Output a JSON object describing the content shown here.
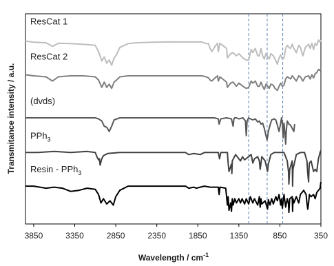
{
  "chart_data": {
    "type": "line",
    "title": "",
    "xlabel": "Wavelength / cm",
    "xlabel_sup": "-1",
    "ylabel": "Transmitance intensity / a.u.",
    "xlim": [
      3950,
      350
    ],
    "x_reversed": true,
    "ylim": [
      0,
      1
    ],
    "y_ticks_shown": false,
    "x_ticks": [
      3850,
      3350,
      2850,
      2350,
      1850,
      1350,
      850,
      350
    ],
    "x_tick_labels": [
      "3850",
      "3350",
      "2850",
      "2350",
      "1850",
      "1350",
      "850",
      "350"
    ],
    "grid": false,
    "legend": "inline-labels",
    "reference_lines": {
      "style": "dashed",
      "color": "#5b7fb0",
      "x": [
        1230,
        1005,
        815
      ]
    },
    "series": [
      {
        "name": "ResCat 1",
        "label_main": "ResCat 1",
        "label_sub": "",
        "color": "#bdbdbd",
        "x": [
          3950,
          3850,
          3700,
          3620,
          3550,
          3400,
          3250,
          3100,
          3060,
          3020,
          2990,
          2960,
          2930,
          2900,
          2870,
          2840,
          2800,
          2700,
          2600,
          2400,
          2200,
          2000,
          1860,
          1800,
          1750,
          1720,
          1700,
          1680,
          1640,
          1610,
          1600,
          1580,
          1500,
          1490,
          1470,
          1450,
          1420,
          1380,
          1350,
          1300,
          1260,
          1230,
          1200,
          1180,
          1150,
          1120,
          1100,
          1080,
          1060,
          1040,
          1020,
          1005,
          980,
          960,
          930,
          910,
          880,
          860,
          840,
          820,
          800,
          780,
          760,
          740,
          720,
          700,
          680,
          650,
          620,
          600,
          570,
          540,
          500,
          480,
          460,
          440,
          420,
          400,
          380,
          360,
          350
        ],
        "y": [
          0.87,
          0.865,
          0.862,
          0.845,
          0.86,
          0.858,
          0.855,
          0.85,
          0.82,
          0.775,
          0.795,
          0.765,
          0.78,
          0.755,
          0.79,
          0.805,
          0.84,
          0.858,
          0.862,
          0.865,
          0.866,
          0.866,
          0.866,
          0.866,
          0.858,
          0.858,
          0.835,
          0.82,
          0.845,
          0.86,
          0.82,
          0.86,
          0.835,
          0.79,
          0.8,
          0.81,
          0.815,
          0.8,
          0.81,
          0.79,
          0.78,
          0.78,
          0.83,
          0.815,
          0.835,
          0.8,
          0.8,
          0.835,
          0.8,
          0.785,
          0.81,
          0.8,
          0.785,
          0.81,
          0.8,
          0.785,
          0.76,
          0.79,
          0.805,
          0.785,
          0.79,
          0.835,
          0.85,
          0.84,
          0.835,
          0.855,
          0.835,
          0.815,
          0.85,
          0.84,
          0.8,
          0.84,
          0.855,
          0.835,
          0.86,
          0.83,
          0.86,
          0.85,
          0.875,
          0.865,
          0.875
        ]
      },
      {
        "name": "ResCat 2",
        "label_main": "ResCat 2",
        "label_sub": "",
        "color": "#7f7f7f",
        "x": [
          3950,
          3850,
          3700,
          3620,
          3550,
          3400,
          3250,
          3100,
          3060,
          3020,
          2990,
          2960,
          2930,
          2900,
          2870,
          2840,
          2800,
          2700,
          2600,
          2400,
          2200,
          2000,
          1860,
          1800,
          1750,
          1720,
          1700,
          1680,
          1640,
          1610,
          1600,
          1580,
          1500,
          1490,
          1470,
          1450,
          1420,
          1380,
          1350,
          1300,
          1260,
          1230,
          1200,
          1180,
          1150,
          1120,
          1100,
          1080,
          1060,
          1040,
          1020,
          1005,
          980,
          960,
          930,
          910,
          880,
          860,
          840,
          820,
          800,
          780,
          760,
          740,
          720,
          700,
          680,
          650,
          620,
          600,
          570,
          540,
          500,
          480,
          460,
          440,
          420,
          400,
          380,
          360,
          350
        ],
        "y": [
          0.71,
          0.705,
          0.7,
          0.68,
          0.7,
          0.705,
          0.705,
          0.7,
          0.685,
          0.65,
          0.675,
          0.65,
          0.665,
          0.645,
          0.675,
          0.685,
          0.7,
          0.705,
          0.705,
          0.705,
          0.705,
          0.705,
          0.705,
          0.705,
          0.7,
          0.695,
          0.685,
          0.68,
          0.695,
          0.705,
          0.68,
          0.7,
          0.675,
          0.65,
          0.66,
          0.67,
          0.675,
          0.655,
          0.67,
          0.655,
          0.645,
          0.65,
          0.68,
          0.67,
          0.68,
          0.655,
          0.655,
          0.675,
          0.655,
          0.64,
          0.665,
          0.66,
          0.645,
          0.665,
          0.66,
          0.645,
          0.635,
          0.655,
          0.67,
          0.655,
          0.66,
          0.69,
          0.7,
          0.695,
          0.69,
          0.705,
          0.695,
          0.68,
          0.705,
          0.7,
          0.68,
          0.7,
          0.705,
          0.69,
          0.71,
          0.695,
          0.715,
          0.72,
          0.735,
          0.73,
          0.74
        ]
      },
      {
        "name": "(dvds)",
        "label_main": "(dvds)",
        "label_sub": "",
        "color": "#595959",
        "x": [
          3950,
          3800,
          3600,
          3400,
          3200,
          3100,
          3060,
          3020,
          2990,
          2960,
          2930,
          2900,
          2870,
          2800,
          2600,
          2400,
          2200,
          2000,
          1800,
          1650,
          1600,
          1590,
          1570,
          1500,
          1440,
          1420,
          1410,
          1400,
          1380,
          1350,
          1300,
          1270,
          1260,
          1250,
          1230,
          1210,
          1180,
          1150,
          1120,
          1100,
          1080,
          1060,
          1040,
          1020,
          1005,
          990,
          970,
          950,
          920,
          900,
          880,
          860,
          840,
          830,
          820,
          810,
          800,
          790,
          780,
          770,
          760,
          740,
          720,
          700,
          680,
          670
        ],
        "y": [
          0.505,
          0.505,
          0.505,
          0.505,
          0.505,
          0.505,
          0.5,
          0.49,
          0.465,
          0.46,
          0.44,
          0.465,
          0.495,
          0.505,
          0.505,
          0.505,
          0.505,
          0.505,
          0.505,
          0.505,
          0.5,
          0.475,
          0.5,
          0.505,
          0.5,
          0.465,
          0.5,
          0.505,
          0.505,
          0.5,
          0.505,
          0.49,
          0.42,
          0.49,
          0.505,
          0.5,
          0.495,
          0.5,
          0.485,
          0.49,
          0.475,
          0.48,
          0.455,
          0.42,
          0.4,
          0.44,
          0.47,
          0.495,
          0.5,
          0.495,
          0.47,
          0.44,
          0.48,
          0.505,
          0.48,
          0.41,
          0.48,
          0.44,
          0.38,
          0.45,
          0.49,
          0.475,
          0.47,
          0.455,
          0.44,
          0.475
        ]
      },
      {
        "name": "PPh3",
        "label_main": "PPh",
        "label_sub": "3",
        "color": "#404040",
        "x": [
          3950,
          3800,
          3600,
          3400,
          3200,
          3100,
          3080,
          3060,
          3050,
          3040,
          3020,
          3000,
          2950,
          2800,
          2600,
          2400,
          2200,
          2000,
          1960,
          1900,
          1820,
          1770,
          1600,
          1585,
          1570,
          1490,
          1480,
          1470,
          1440,
          1435,
          1430,
          1390,
          1330,
          1305,
          1280,
          1200,
          1180,
          1160,
          1120,
          1100,
          1090,
          1080,
          1070,
          1030,
          1000,
          990,
          960,
          920,
          850,
          800,
          760,
          745,
          740,
          730,
          700,
          695,
          690,
          650,
          600,
          550,
          520,
          510,
          500,
          495,
          490,
          470,
          440,
          420,
          400,
          380,
          360,
          350
        ],
        "y": [
          0.34,
          0.34,
          0.345,
          0.34,
          0.345,
          0.34,
          0.32,
          0.305,
          0.31,
          0.28,
          0.31,
          0.325,
          0.335,
          0.34,
          0.34,
          0.34,
          0.34,
          0.34,
          0.33,
          0.335,
          0.33,
          0.34,
          0.34,
          0.31,
          0.34,
          0.34,
          0.29,
          0.25,
          0.285,
          0.24,
          0.3,
          0.33,
          0.3,
          0.32,
          0.305,
          0.33,
          0.29,
          0.31,
          0.32,
          0.3,
          0.26,
          0.29,
          0.32,
          0.3,
          0.25,
          0.285,
          0.33,
          0.34,
          0.34,
          0.34,
          0.3,
          0.25,
          0.19,
          0.26,
          0.3,
          0.18,
          0.26,
          0.33,
          0.34,
          0.34,
          0.3,
          0.24,
          0.2,
          0.26,
          0.29,
          0.3,
          0.25,
          0.26,
          0.25,
          0.31,
          0.34,
          0.35
        ]
      },
      {
        "name": "Resin - PPh3",
        "label_main": "Resin - PPh",
        "label_sub": "3",
        "color": "#000000",
        "x": [
          3950,
          3850,
          3700,
          3600,
          3500,
          3400,
          3300,
          3200,
          3100,
          3060,
          3030,
          3000,
          2960,
          2920,
          2880,
          2850,
          2800,
          2700,
          2600,
          2400,
          2200,
          2000,
          1960,
          1900,
          1870,
          1820,
          1770,
          1700,
          1600,
          1590,
          1580,
          1510,
          1490,
          1480,
          1470,
          1450,
          1440,
          1430,
          1420,
          1400,
          1380,
          1350,
          1330,
          1310,
          1280,
          1260,
          1230,
          1210,
          1180,
          1160,
          1120,
          1100,
          1090,
          1080,
          1070,
          1030,
          1000,
          990,
          970,
          950,
          930,
          900,
          880,
          860,
          840,
          830,
          820,
          800,
          780,
          760,
          745,
          740,
          730,
          700,
          695,
          690,
          680,
          650,
          620,
          600,
          560,
          530,
          520,
          510,
          500,
          495,
          490,
          470,
          440,
          420,
          400,
          380,
          360,
          350
        ],
        "y": [
          0.18,
          0.18,
          0.17,
          0.175,
          0.17,
          0.155,
          0.16,
          0.17,
          0.165,
          0.14,
          0.1,
          0.12,
          0.095,
          0.11,
          0.09,
          0.13,
          0.16,
          0.18,
          0.18,
          0.18,
          0.18,
          0.18,
          0.17,
          0.175,
          0.17,
          0.175,
          0.18,
          0.175,
          0.175,
          0.14,
          0.175,
          0.17,
          0.09,
          0.13,
          0.065,
          0.1,
          0.06,
          0.12,
          0.09,
          0.12,
          0.1,
          0.12,
          0.1,
          0.12,
          0.095,
          0.12,
          0.095,
          0.13,
          0.1,
          0.12,
          0.09,
          0.13,
          0.08,
          0.12,
          0.095,
          0.11,
          0.07,
          0.115,
          0.09,
          0.12,
          0.095,
          0.13,
          0.11,
          0.14,
          0.09,
          0.12,
          0.075,
          0.14,
          0.08,
          0.12,
          0.095,
          0.055,
          0.12,
          0.13,
          0.06,
          0.12,
          0.1,
          0.13,
          0.1,
          0.14,
          0.16,
          0.14,
          0.1,
          0.07,
          0.1,
          0.12,
          0.14,
          0.13,
          0.14,
          0.12,
          0.15,
          0.16,
          0.17,
          0.2
        ]
      }
    ]
  }
}
